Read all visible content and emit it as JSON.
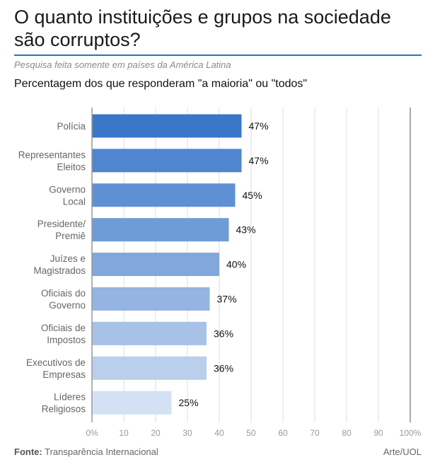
{
  "header": {
    "title": "O quanto instituições e grupos na sociedade são corruptos?",
    "subtitle": "Pesquisa feita somente em países da América Latina",
    "chart_heading": "Percentagem dos que responderam \"a maioria\" ou \"todos\""
  },
  "footer": {
    "source_label": "Fonte:",
    "source_text": "Transparência Internacional",
    "credit": "Arte/UOL"
  },
  "chart_data": {
    "type": "bar",
    "orientation": "horizontal",
    "title": "",
    "xlabel": "",
    "ylabel": "",
    "categories": [
      [
        "Polícia"
      ],
      [
        "Representantes",
        "Eleitos"
      ],
      [
        "Governo",
        "Local"
      ],
      [
        "Presidente/",
        "Premiê"
      ],
      [
        "Juízes e",
        "Magistrados"
      ],
      [
        "Oficiais do",
        "Governo"
      ],
      [
        "Oficiais de",
        "Impostos"
      ],
      [
        "Executivos de",
        "Empresas"
      ],
      [
        "Líderes",
        "Religiosos"
      ]
    ],
    "values": [
      47,
      47,
      45,
      43,
      40,
      37,
      36,
      36,
      25
    ],
    "value_labels": [
      "47%",
      "47%",
      "45%",
      "43%",
      "40%",
      "37%",
      "36%",
      "36%",
      "25%"
    ],
    "bar_colors": [
      "#3a77c9",
      "#4f86cf",
      "#5f90d3",
      "#6f9bd7",
      "#81a7dc",
      "#94b4e1",
      "#a7c2e6",
      "#bacfeb",
      "#d3e1f4"
    ],
    "xlim": [
      0,
      100
    ],
    "xticks": [
      0,
      10,
      20,
      30,
      40,
      50,
      60,
      70,
      80,
      90,
      100
    ],
    "xtick_labels": [
      "0%",
      "10",
      "20",
      "30",
      "40",
      "50",
      "60",
      "70",
      "80",
      "90",
      "100%"
    ],
    "grid": true,
    "legend": "none",
    "colors": {
      "grid": "#dddddd",
      "axis": "#999999",
      "end_line": "#aaaaaa",
      "label": "#666666",
      "tick": "#999999",
      "value_label": "#111111"
    }
  }
}
